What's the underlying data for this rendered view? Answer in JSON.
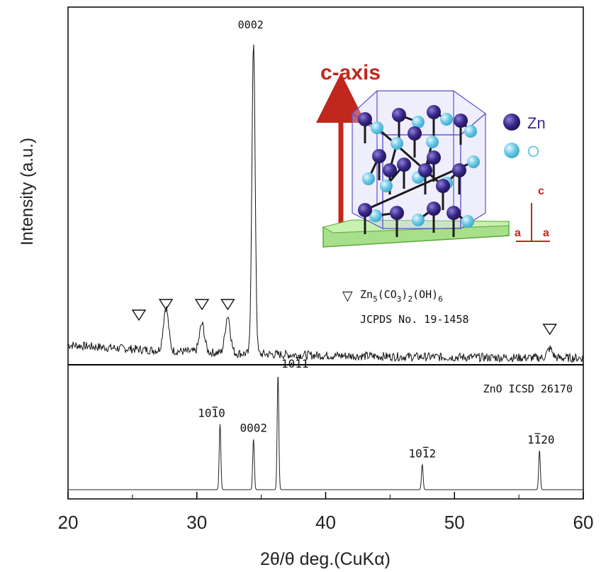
{
  "chart_data": {
    "type": "line",
    "xlabel": "2θ/θ deg.(CuKα)",
    "ylabel": "Intensity (a.u.)",
    "xlim": [
      20,
      60
    ],
    "xticks": [
      "20",
      "30",
      "40",
      "50",
      "60"
    ],
    "grid": false,
    "panels": [
      {
        "name": "measured",
        "series": [
          {
            "peaks": [
              {
                "x": 27.6,
                "y": 0.14
              },
              {
                "x": 30.4,
                "y": 0.09
              },
              {
                "x": 32.4,
                "y": 0.12
              },
              {
                "x": 34.4,
                "y": 1.0
              },
              {
                "x": 57.4,
                "y": 0.03
              }
            ]
          }
        ],
        "peak_label": "0002",
        "marker_positions": [
          25.5,
          27.6,
          30.4,
          32.4,
          57.4
        ],
        "legend": {
          "symbol": "▽",
          "line1": "Zn5(CO3)2(OH)6",
          "line2": "JCPDS No. 19-1458"
        }
      },
      {
        "name": "reference",
        "title": "ZnO ICSD 26170",
        "peaks": [
          {
            "x": 31.8,
            "y": 0.57,
            "label": "1010"
          },
          {
            "x": 34.4,
            "y": 0.44,
            "label": "0002"
          },
          {
            "x": 36.3,
            "y": 1.0,
            "label": "1011"
          },
          {
            "x": 47.5,
            "y": 0.22,
            "label": "1012"
          },
          {
            "x": 56.6,
            "y": 0.34,
            "label": "1120"
          }
        ]
      }
    ]
  },
  "inset": {
    "arrow_label": "c-axis",
    "legend": [
      {
        "label": "Zn",
        "color": "#3b2a8c"
      },
      {
        "label": "O",
        "color": "#6ac8e6"
      }
    ],
    "axes_labels": {
      "c": "c",
      "a1": "a",
      "a2": "a"
    },
    "accent_color": "#c0281e"
  }
}
